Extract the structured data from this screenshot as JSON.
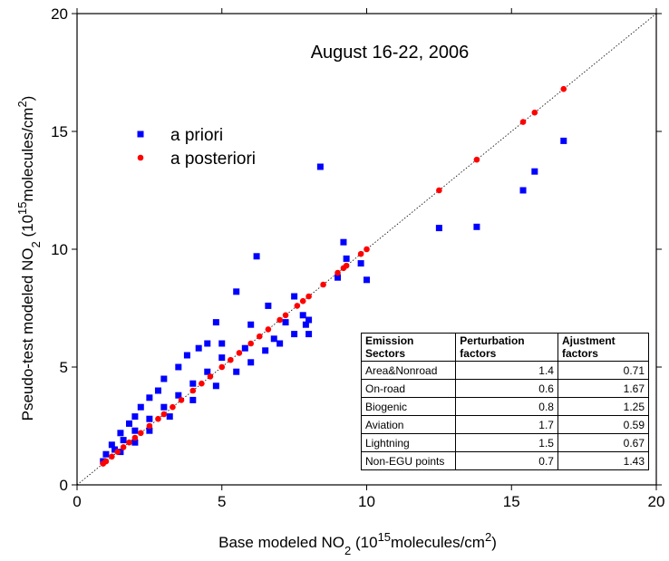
{
  "chart_data": {
    "type": "scatter",
    "annotation": "August 16-22, 2006",
    "xlabel": [
      {
        "text": "Base modeled NO"
      },
      {
        "text": "2",
        "shift": "sub"
      },
      {
        "text": " (10"
      },
      {
        "text": "15",
        "shift": "super"
      },
      {
        "text": "molecules/cm"
      },
      {
        "text": "2",
        "shift": "super"
      },
      {
        "text": ")"
      }
    ],
    "ylabel": [
      {
        "text": "Pseudo-test modeled NO"
      },
      {
        "text": "2",
        "shift": "sub"
      },
      {
        "text": " (10"
      },
      {
        "text": "15",
        "shift": "super"
      },
      {
        "text": "molecules/cm"
      },
      {
        "text": "2",
        "shift": "super"
      },
      {
        "text": ")"
      }
    ],
    "xlim": [
      0,
      20
    ],
    "ylim": [
      0,
      20
    ],
    "xticks": [
      0,
      5,
      10,
      15,
      20
    ],
    "yticks": [
      0,
      5,
      10,
      15,
      20
    ],
    "series": [
      {
        "name": "a priori",
        "color": "#0000ff",
        "marker": "square",
        "x": [
          8.4,
          9.2,
          9.3,
          9.8,
          10.0,
          9.0,
          12.5,
          13.8,
          15.4,
          15.8,
          16.8,
          6.2,
          5.5,
          6.6,
          7.5,
          7.8,
          7.9,
          7.2,
          6.8,
          4.8,
          4.5,
          4.2,
          3.8,
          3.5,
          3.0,
          2.8,
          2.5,
          2.2,
          2.0,
          1.8,
          1.5,
          1.2,
          1.0,
          0.9,
          1.3,
          1.6,
          2.0,
          2.5,
          3.0,
          3.5,
          4.0,
          4.5,
          5.0,
          3.2,
          4.0,
          4.8,
          5.5,
          6.0,
          6.5,
          7.0,
          7.5,
          8.0,
          8.0,
          5.0,
          6.0,
          5.8,
          2.0,
          2.5,
          1.5
        ],
        "values": [
          13.5,
          10.3,
          9.6,
          9.4,
          8.7,
          8.8,
          10.9,
          10.95,
          12.5,
          13.3,
          14.6,
          9.7,
          8.2,
          7.6,
          8.0,
          7.2,
          6.8,
          6.9,
          6.2,
          6.9,
          6.0,
          5.8,
          5.5,
          5.0,
          4.5,
          4.0,
          3.7,
          3.3,
          2.9,
          2.6,
          2.2,
          1.7,
          1.3,
          1.0,
          1.5,
          1.9,
          2.3,
          2.8,
          3.3,
          3.8,
          4.3,
          4.8,
          5.4,
          2.9,
          3.6,
          4.2,
          4.8,
          5.2,
          5.7,
          6.0,
          6.4,
          7.0,
          6.4,
          6.0,
          6.8,
          5.8,
          1.8,
          2.3,
          1.4
        ]
      },
      {
        "name": "a posteriori",
        "color": "#ff0000",
        "marker": "circle",
        "x": [
          0.9,
          1.0,
          1.2,
          1.4,
          1.6,
          1.8,
          2.0,
          2.2,
          2.5,
          2.8,
          3.0,
          3.3,
          3.6,
          4.0,
          4.3,
          4.6,
          5.0,
          5.3,
          5.6,
          6.0,
          6.3,
          6.6,
          7.0,
          7.2,
          7.6,
          7.8,
          8.0,
          8.5,
          9.0,
          9.2,
          9.3,
          9.8,
          10.0,
          12.5,
          13.8,
          15.4,
          15.8,
          16.8
        ],
        "values": [
          0.9,
          1.0,
          1.2,
          1.4,
          1.6,
          1.8,
          2.0,
          2.2,
          2.5,
          2.8,
          3.0,
          3.3,
          3.6,
          4.0,
          4.3,
          4.6,
          5.0,
          5.3,
          5.6,
          6.0,
          6.3,
          6.6,
          7.0,
          7.2,
          7.6,
          7.8,
          8.0,
          8.5,
          9.0,
          9.2,
          9.3,
          9.8,
          10.0,
          12.5,
          13.8,
          15.4,
          15.8,
          16.8
        ]
      }
    ],
    "table": {
      "header": [
        "Emission Sectors",
        "Perturbation factors",
        "Ajustment factors"
      ],
      "rows": [
        [
          "Area&Nonroad",
          1.4,
          0.71
        ],
        [
          "On-road",
          0.6,
          1.67
        ],
        [
          "Biogenic",
          0.8,
          1.25
        ],
        [
          "Aviation",
          1.7,
          0.59
        ],
        [
          "Lightning",
          1.5,
          0.67
        ],
        [
          "Non-EGU points",
          0.7,
          1.43
        ]
      ]
    }
  }
}
